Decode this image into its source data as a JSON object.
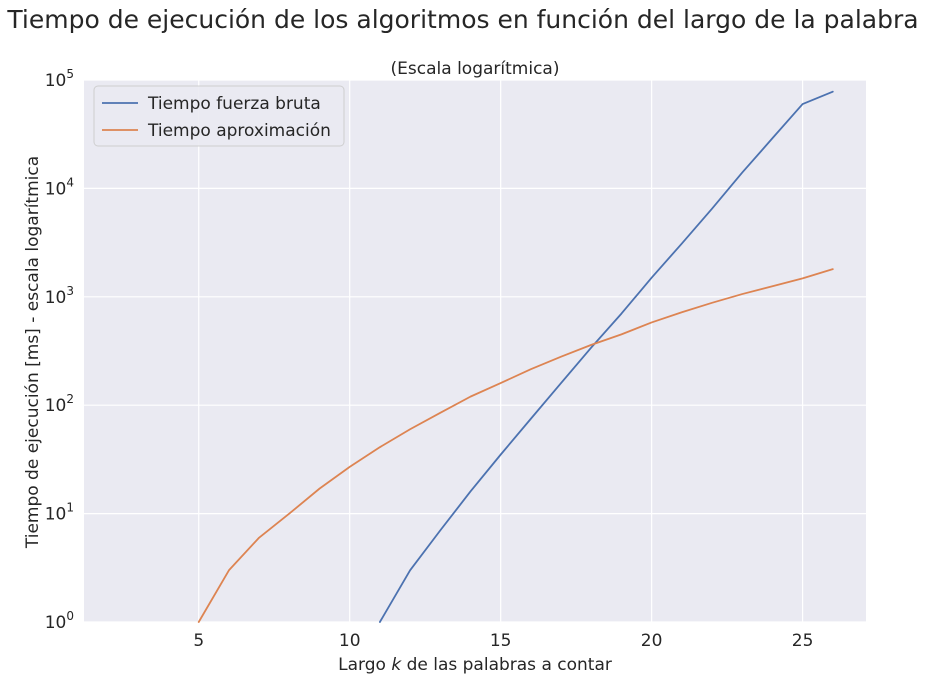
{
  "chart_data": {
    "type": "line",
    "suptitle": "Tiempo de ejecución de los algoritmos en función del largo de la palabra",
    "title": "(Escala logarítmica)",
    "xlabel_pre": "Largo ",
    "xlabel_var": "k",
    "xlabel_post": " de las palabras a contar",
    "ylabel": "Tiempo de ejecución [ms] - escala logarítmica",
    "xlim": [
      1.2,
      27.1
    ],
    "ylim": [
      1,
      100000
    ],
    "yscale": "log",
    "xticks": [
      5,
      10,
      15,
      20,
      25
    ],
    "yticks": [
      {
        "value": 1,
        "base": "10",
        "exp": "0"
      },
      {
        "value": 10,
        "base": "10",
        "exp": "1"
      },
      {
        "value": 100,
        "base": "10",
        "exp": "2"
      },
      {
        "value": 1000,
        "base": "10",
        "exp": "3"
      },
      {
        "value": 10000,
        "base": "10",
        "exp": "4"
      },
      {
        "value": 100000,
        "base": "10",
        "exp": "5"
      }
    ],
    "grid": true,
    "legend_position": "top-left",
    "series": [
      {
        "name": "Tiempo fuerza bruta",
        "color": "#4c72b0",
        "x": [
          11,
          12,
          13,
          14,
          15,
          16,
          17,
          18,
          19,
          20,
          21,
          22,
          23,
          24,
          25,
          26
        ],
        "y": [
          1,
          3,
          7,
          16,
          35,
          75,
          160,
          340,
          700,
          1500,
          3100,
          6500,
          14000,
          29000,
          60000,
          78000
        ]
      },
      {
        "name": "Tiempo aproximación",
        "color": "#dd8452",
        "x": [
          5,
          6,
          7,
          8,
          9,
          10,
          11,
          12,
          13,
          14,
          15,
          16,
          17,
          18,
          19,
          20,
          21,
          22,
          23,
          24,
          25,
          26
        ],
        "y": [
          1,
          3,
          6,
          10,
          17,
          27,
          41,
          60,
          85,
          120,
          160,
          215,
          280,
          360,
          450,
          580,
          720,
          880,
          1060,
          1250,
          1480,
          1800
        ]
      }
    ]
  }
}
